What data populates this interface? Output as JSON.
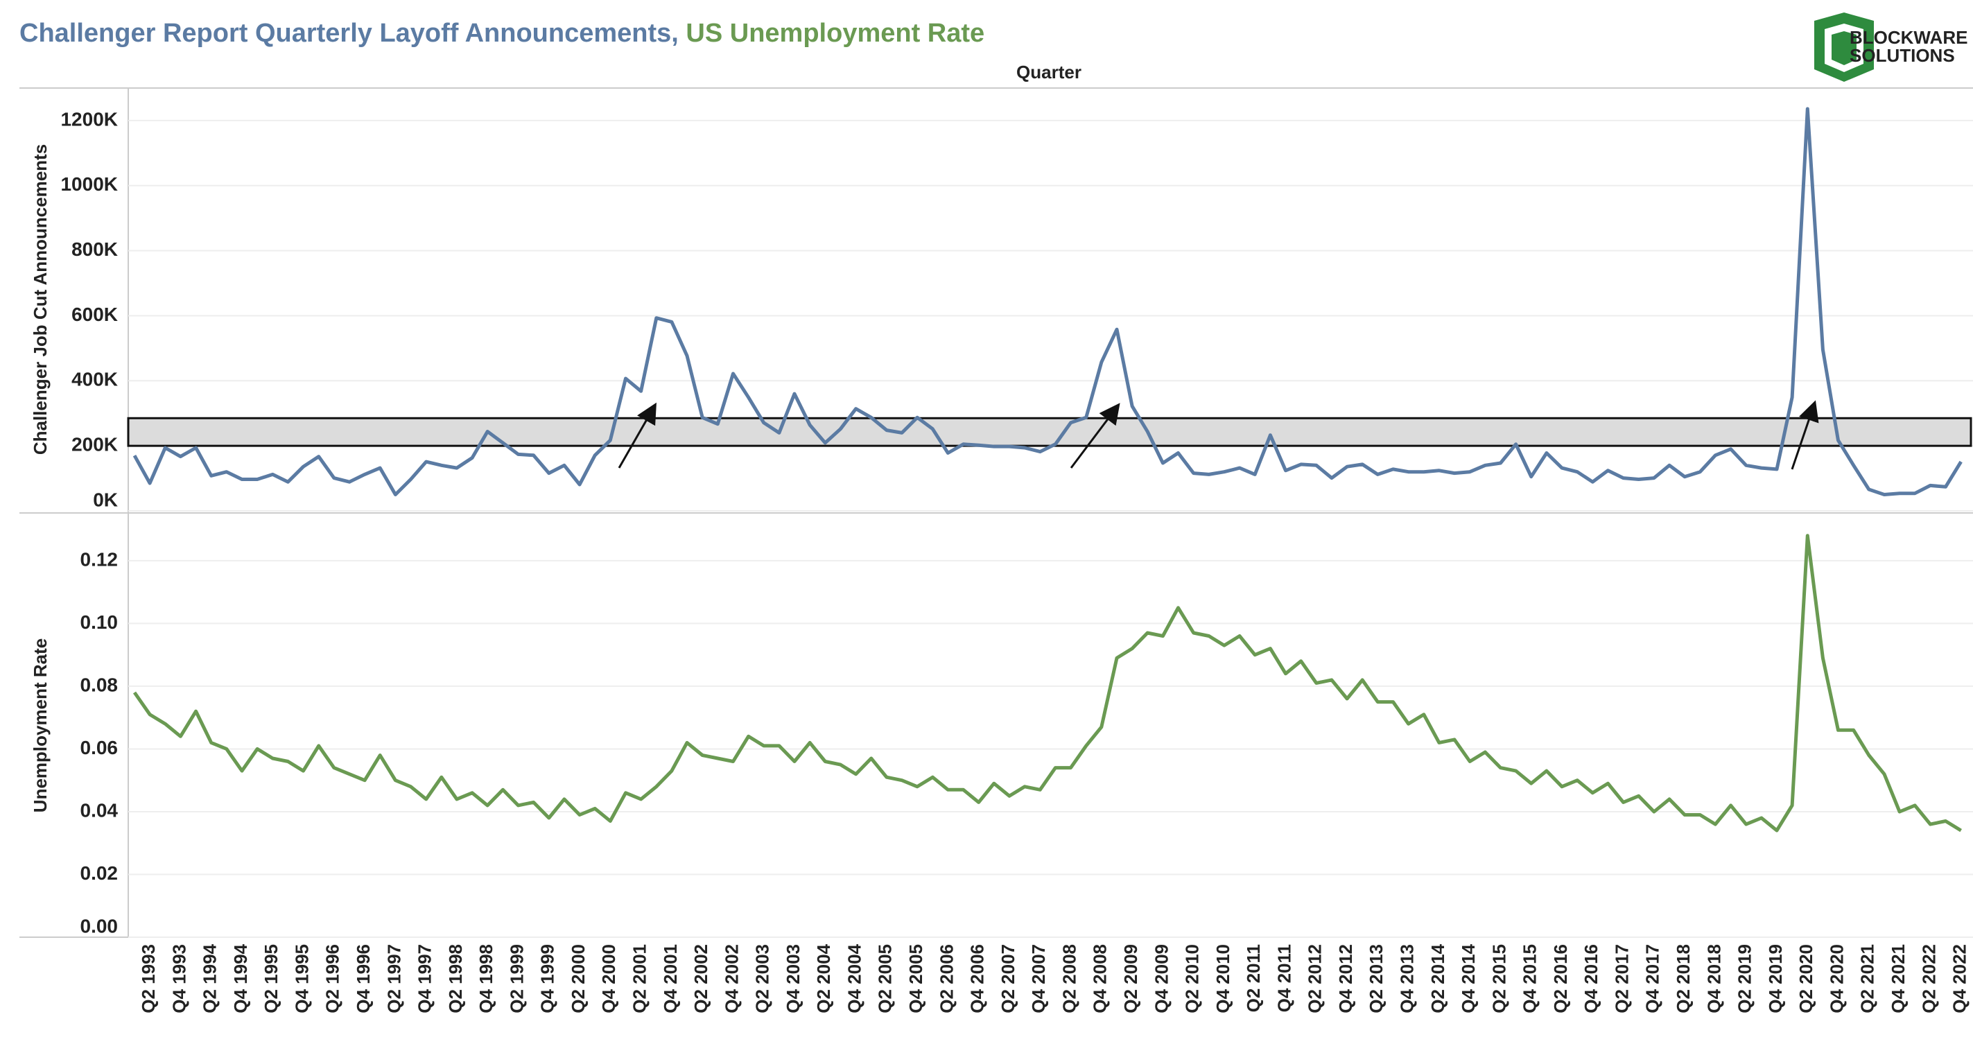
{
  "title": [
    "Challenger Report Quarterly Layoff Announcements,",
    "US Unemployment Rate"
  ],
  "title_colors": [
    "#5b7ba3",
    "#6a9a52"
  ],
  "logo": [
    "BLOCKWARE",
    "SOLUTIONS"
  ],
  "x_label": "Quarter",
  "categories": [
    null,
    "Q2 1993",
    null,
    "Q4 1993",
    null,
    "Q2 1994",
    null,
    "Q4 1994",
    null,
    "Q2 1995",
    null,
    "Q4 1995",
    null,
    "Q2 1996",
    null,
    "Q4 1996",
    null,
    "Q2 1997",
    null,
    "Q4 1997",
    null,
    "Q2 1998",
    null,
    "Q4 1998",
    null,
    "Q2 1999",
    null,
    "Q4 1999",
    null,
    "Q2 2000",
    null,
    "Q4 2000",
    null,
    "Q2 2001",
    null,
    "Q4 2001",
    null,
    "Q2 2002",
    null,
    "Q4 2002",
    null,
    "Q2 2003",
    null,
    "Q4 2003",
    null,
    "Q2 2004",
    null,
    "Q4 2004",
    null,
    "Q2 2005",
    null,
    "Q4 2005",
    null,
    "Q2 2006",
    null,
    "Q4 2006",
    null,
    "Q2 2007",
    null,
    "Q4 2007",
    null,
    "Q2 2008",
    null,
    "Q4 2008",
    null,
    "Q2 2009",
    null,
    "Q4 2009",
    null,
    "Q2 2010",
    null,
    "Q4 2010",
    null,
    "Q2 2011",
    null,
    "Q4 2011",
    null,
    "Q2 2012",
    null,
    "Q4 2012",
    null,
    "Q2 2013",
    null,
    "Q4 2013",
    null,
    "Q2 2014",
    null,
    "Q4 2014",
    null,
    "Q2 2015",
    null,
    "Q4 2015",
    null,
    "Q2 2016",
    null,
    "Q4 2016",
    null,
    "Q2 2017",
    null,
    "Q4 2017",
    null,
    "Q2 2018",
    null,
    "Q4 2018",
    null,
    "Q2 2019",
    null,
    "Q4 2019",
    null,
    "Q2 2020",
    null,
    "Q4 2020",
    null,
    "Q2 2021",
    null,
    "Q4 2021",
    null,
    "Q2 2022",
    null,
    "Q4 2022"
  ],
  "chart_data": [
    {
      "type": "line",
      "ylabel": "Challenger Job Cut Announcements",
      "ylim": [
        0,
        1300000
      ],
      "yticks": [
        {
          "value": 0,
          "label": "0K"
        },
        {
          "value": 200000,
          "label": "200K"
        },
        {
          "value": 400000,
          "label": "400K"
        },
        {
          "value": 600000,
          "label": "600K"
        },
        {
          "value": 800000,
          "label": "800K"
        },
        {
          "value": 1000000,
          "label": "1000K"
        },
        {
          "value": 1200000,
          "label": "1200K"
        }
      ],
      "grid": true,
      "highlight_band": [
        200000,
        285000
      ],
      "series": [
        {
          "color": "#5b7ba3",
          "values": [
            170000,
            85000,
            194000,
            167000,
            194000,
            108000,
            120000,
            97000,
            97000,
            112000,
            89000,
            136000,
            167000,
            101000,
            89000,
            112000,
            132000,
            50000,
            97000,
            151000,
            140000,
            132000,
            163000,
            244000,
            209000,
            174000,
            171000,
            116000,
            140000,
            81000,
            171000,
            217000,
            407000,
            368000,
            593000,
            581000,
            477000,
            287000,
            267000,
            422000,
            349000,
            271000,
            240000,
            360000,
            264000,
            209000,
            252000,
            314000,
            287000,
            248000,
            240000,
            287000,
            252000,
            178000,
            205000,
            202000,
            198000,
            198000,
            194000,
            182000,
            205000,
            271000,
            287000,
            457000,
            558000,
            322000,
            244000,
            147000,
            178000,
            116000,
            112000,
            120000,
            132000,
            112000,
            233000,
            124000,
            143000,
            140000,
            101000,
            136000,
            143000,
            112000,
            128000,
            120000,
            120000,
            124000,
            116000,
            120000,
            140000,
            147000,
            205000,
            105000,
            178000,
            132000,
            120000,
            89000,
            124000,
            101000,
            97000,
            101000,
            140000,
            105000,
            120000,
            171000,
            190000,
            140000,
            132000,
            128000,
            349000,
            1236000,
            496000,
            217000,
            140000,
            66000,
            50000,
            54000,
            54000,
            78000,
            74000,
            151000
          ]
        }
      ]
    },
    {
      "type": "line",
      "ylabel": "Unemployment Rate",
      "ylim": [
        0,
        0.135
      ],
      "yticks": [
        {
          "value": 0,
          "label": "0.00"
        },
        0.02,
        0.04,
        0.06,
        0.08,
        {
          "value": 0.1,
          "label": "0.10"
        },
        0.12
      ],
      "grid": true,
      "series": [
        {
          "color": "#6a9a52",
          "values": [
            0.078,
            0.071,
            0.068,
            0.064,
            0.072,
            0.062,
            0.06,
            0.053,
            0.06,
            0.057,
            0.056,
            0.053,
            0.061,
            0.054,
            0.052,
            0.05,
            0.058,
            0.05,
            0.048,
            0.044,
            0.051,
            0.044,
            0.046,
            0.042,
            0.047,
            0.042,
            0.043,
            0.038,
            0.044,
            0.039,
            0.041,
            0.037,
            0.046,
            0.044,
            0.048,
            0.053,
            0.062,
            0.058,
            0.057,
            0.056,
            0.064,
            0.061,
            0.061,
            0.056,
            0.062,
            0.056,
            0.055,
            0.052,
            0.057,
            0.051,
            0.05,
            0.048,
            0.051,
            0.047,
            0.047,
            0.043,
            0.049,
            0.045,
            0.048,
            0.047,
            0.054,
            0.054,
            0.061,
            0.067,
            0.089,
            0.092,
            0.097,
            0.096,
            0.105,
            0.097,
            0.096,
            0.093,
            0.096,
            0.09,
            0.092,
            0.084,
            0.088,
            0.081,
            0.082,
            0.076,
            0.082,
            0.075,
            0.075,
            0.068,
            0.071,
            0.062,
            0.063,
            0.056,
            0.059,
            0.054,
            0.053,
            0.049,
            0.053,
            0.048,
            0.05,
            0.046,
            0.049,
            0.043,
            0.045,
            0.04,
            0.044,
            0.039,
            0.039,
            0.036,
            0.042,
            0.036,
            0.038,
            0.034,
            0.042,
            0.128,
            0.089,
            0.066,
            0.066,
            0.058,
            0.052,
            0.04,
            0.042,
            0.036,
            0.037,
            0.034
          ]
        }
      ]
    }
  ]
}
